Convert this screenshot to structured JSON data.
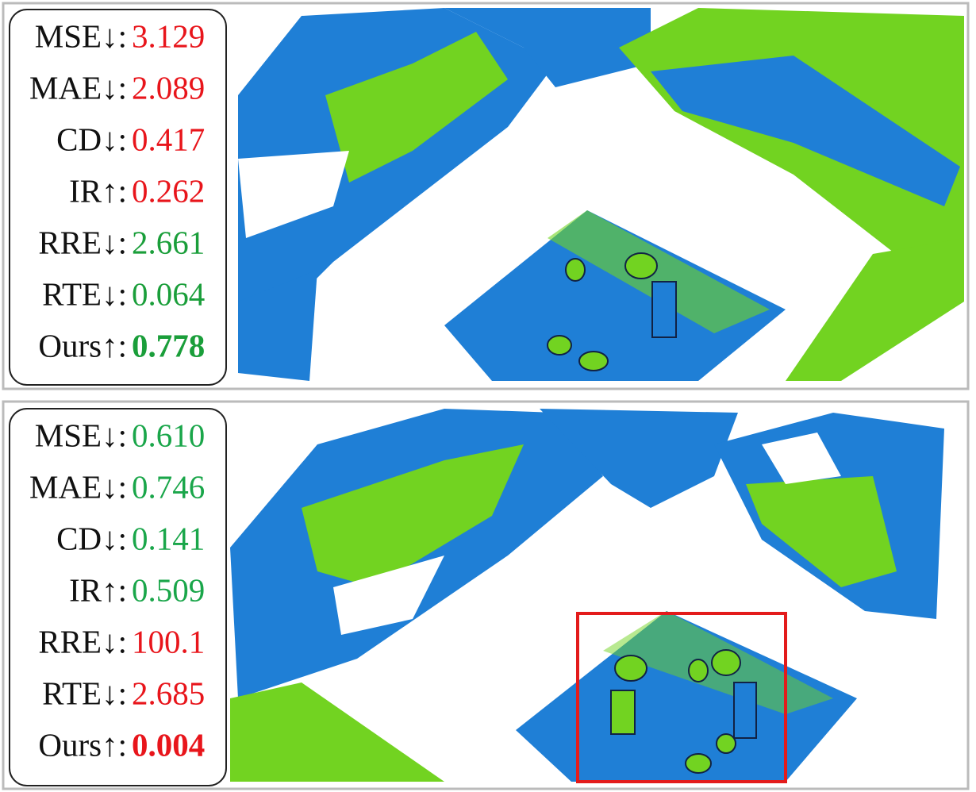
{
  "panels": [
    {
      "metrics": [
        {
          "label": "MSE↓:",
          "value": "3.129",
          "color": "#e8151b"
        },
        {
          "label": "MAE↓:",
          "value": "2.089",
          "color": "#e8151b"
        },
        {
          "label": "CD↓:",
          "value": "0.417",
          "color": "#e8151b"
        },
        {
          "label": "IR↑:",
          "value": "0.262",
          "color": "#e8151b"
        },
        {
          "label": "RRE↓:",
          "value": "2.661",
          "color": "#1a9e3a"
        },
        {
          "label": "RTE↓:",
          "value": "0.064",
          "color": "#1a9e3a"
        },
        {
          "label": "Ours↑:",
          "value": "0.778",
          "color": "#1a9e3a",
          "bold": true
        }
      ]
    },
    {
      "metrics": [
        {
          "label": "MSE↓:",
          "value": "0.610",
          "color": "#1aa64a"
        },
        {
          "label": "MAE↓:",
          "value": "0.746",
          "color": "#1aa64a"
        },
        {
          "label": "CD↓:",
          "value": "0.141",
          "color": "#1aa64a"
        },
        {
          "label": "IR↑:",
          "value": "0.509",
          "color": "#1aa64a"
        },
        {
          "label": "RRE↓:",
          "value": "100.1",
          "color": "#e8151b"
        },
        {
          "label": "RTE↓:",
          "value": "2.685",
          "color": "#e8151b"
        },
        {
          "label": "Ours↑:",
          "value": "0.004",
          "color": "#e8151b",
          "bold": true
        }
      ]
    }
  ]
}
